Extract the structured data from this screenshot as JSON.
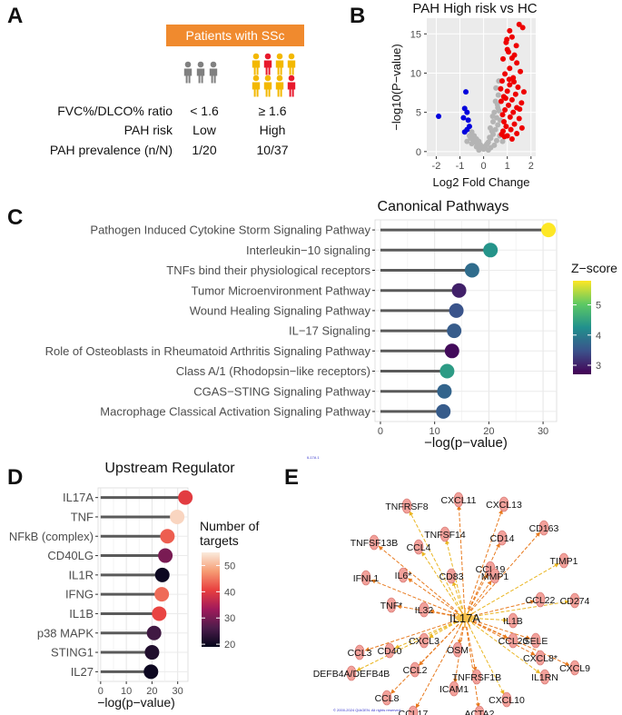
{
  "panelA": {
    "letter": "A",
    "banner": "Patients with SSc",
    "rows": [
      {
        "label": "FVC%/DLCO% ratio",
        "low": "< 1.6",
        "high": "≥ 1.6"
      },
      {
        "label": "PAH risk",
        "low": "Low",
        "high": "High"
      },
      {
        "label": "PAH prevalence  (n/N)",
        "low": "1/20",
        "high": "10/37"
      }
    ],
    "colors": {
      "gray": "#808080",
      "yellow": "#f3b800",
      "red": "#e8192c"
    }
  },
  "panelB": {
    "letter": "B"
  },
  "panelC": {
    "letter": "C"
  },
  "panelD": {
    "letter": "D"
  },
  "panelE": {
    "letter": "E",
    "hub": "IL17A",
    "tiny_label": "IL17A 1",
    "copyright": "© 2000-2024 QIAGEN. All rights reserved.",
    "nodes": [
      "TNFRSF8",
      "CXCL11",
      "CXCL13",
      "TNFSF14",
      "CD163",
      "TNFSF13B",
      "CCL4",
      "CD14",
      "CCL19",
      "TIMP1",
      "IFNL1",
      "IL6*",
      "CD83",
      "MMP1",
      "CCL22",
      "CD274",
      "TNF*",
      "IL32",
      "IL1B",
      "SELE",
      "CCL3",
      "CXCL3",
      "CCL20",
      "CXCL9",
      "CD40",
      "OSM",
      "CXCL8*",
      "DEFB4A/DEFB4B",
      "CCL2",
      "TNFRSF1B",
      "IL1RN",
      "ICAM1",
      "CCL8",
      "CXCL10",
      "CCL17",
      "ACTA2"
    ]
  },
  "chart_data": [
    {
      "id": "volcano",
      "type": "scatter",
      "title": "PAH High risk vs HC",
      "xlabel": "Log2 Fold Change",
      "ylabel": "−log10(P−value)",
      "xlim": [
        -2.4,
        2.2
      ],
      "ylim": [
        -0.6,
        17
      ],
      "xticks": [
        -2,
        -1,
        0,
        1,
        2
      ],
      "yticks": [
        0,
        5,
        10,
        15
      ],
      "series": [
        {
          "name": "down",
          "color": "#0000dd",
          "points": [
            [
              -1.9,
              4.5
            ],
            [
              -0.75,
              7.6
            ],
            [
              -0.8,
              5.5
            ],
            [
              -0.7,
              5.0
            ],
            [
              -0.85,
              4.3
            ],
            [
              -0.65,
              4.0
            ],
            [
              -0.7,
              2.8
            ],
            [
              -0.6,
              3.2
            ],
            [
              -0.8,
              2.5
            ]
          ]
        },
        {
          "name": "up",
          "color": "#ee0000",
          "points": [
            [
              1.5,
              16.2
            ],
            [
              1.65,
              15.8
            ],
            [
              1.1,
              15.4
            ],
            [
              1.2,
              14.6
            ],
            [
              0.95,
              13.9
            ],
            [
              1.0,
              13.0
            ],
            [
              1.3,
              12.3
            ],
            [
              1.4,
              11.3
            ],
            [
              0.82,
              11.8
            ],
            [
              1.1,
              10.6
            ],
            [
              1.55,
              10.2
            ],
            [
              0.9,
              9.9
            ],
            [
              1.25,
              9.4
            ],
            [
              0.78,
              9.0
            ],
            [
              1.1,
              8.5
            ],
            [
              1.45,
              8.2
            ],
            [
              0.72,
              8.0
            ],
            [
              1.0,
              7.7
            ],
            [
              1.35,
              7.3
            ],
            [
              0.85,
              7.0
            ],
            [
              1.2,
              6.6
            ],
            [
              1.6,
              6.2
            ],
            [
              0.74,
              6.4
            ],
            [
              1.05,
              5.9
            ],
            [
              1.4,
              5.6
            ],
            [
              0.9,
              5.3
            ],
            [
              1.25,
              5.0
            ],
            [
              0.8,
              4.7
            ],
            [
              1.12,
              4.4
            ],
            [
              1.5,
              4.2
            ],
            [
              0.86,
              3.8
            ],
            [
              1.3,
              3.5
            ],
            [
              0.95,
              3.2
            ],
            [
              1.62,
              3.0
            ],
            [
              1.15,
              2.8
            ],
            [
              0.82,
              2.6
            ],
            [
              1.4,
              2.3
            ],
            [
              1.0,
              2.0
            ],
            [
              0.88,
              1.9
            ],
            [
              1.2,
              1.6
            ],
            [
              0.76,
              2.2
            ],
            [
              0.93,
              6.8
            ],
            [
              1.08,
              9.2
            ],
            [
              1.2,
              11.9
            ],
            [
              1.05,
              12.7
            ],
            [
              0.98,
              14.3
            ],
            [
              1.38,
              13.5
            ],
            [
              1.7,
              7.6
            ],
            [
              1.52,
              5.4
            ],
            [
              1.28,
              8.9
            ]
          ]
        },
        {
          "name": "ns",
          "color": "#b4b4b4",
          "points": [
            [
              0.0,
              0.3
            ],
            [
              0.1,
              0.8
            ],
            [
              -0.1,
              0.7
            ],
            [
              0.2,
              1.2
            ],
            [
              -0.2,
              1.3
            ],
            [
              0.3,
              1.7
            ],
            [
              -0.3,
              1.6
            ],
            [
              0.4,
              2.2
            ],
            [
              -0.4,
              2.0
            ],
            [
              0.5,
              2.8
            ],
            [
              -0.5,
              2.5
            ],
            [
              0.6,
              3.4
            ],
            [
              0.55,
              4.3
            ],
            [
              0.45,
              5.0
            ],
            [
              0.6,
              5.6
            ],
            [
              0.5,
              6.4
            ],
            [
              0.62,
              7.2
            ],
            [
              0.4,
              3.8
            ],
            [
              0.35,
              2.6
            ],
            [
              0.25,
              1.8
            ],
            [
              0.15,
              1.0
            ],
            [
              -0.05,
              0.4
            ],
            [
              0.05,
              0.6
            ],
            [
              -0.15,
              0.9
            ],
            [
              -0.25,
              1.0
            ],
            [
              -0.35,
              1.2
            ],
            [
              -0.45,
              1.5
            ],
            [
              -0.55,
              1.7
            ],
            [
              -0.6,
              2.0
            ],
            [
              0.3,
              0.5
            ],
            [
              0.45,
              0.8
            ],
            [
              -0.3,
              0.6
            ],
            [
              0.55,
              1.4
            ],
            [
              0.68,
              2.0
            ],
            [
              0.7,
              4.0
            ],
            [
              0.52,
              8.1
            ],
            [
              0.64,
              9.0
            ],
            [
              0.28,
              3.0
            ],
            [
              0.38,
              4.5
            ],
            [
              -0.5,
              1.0
            ],
            [
              -0.7,
              1.3
            ],
            [
              0.8,
              1.3
            ],
            [
              0.2,
              0.2
            ],
            [
              -0.2,
              0.2
            ],
            [
              0.65,
              5.2
            ],
            [
              0.58,
              6.0
            ]
          ]
        }
      ]
    },
    {
      "id": "canonical",
      "type": "lollipop",
      "title": "Canonical Pathways",
      "xlabel": "−log(p−value)",
      "xlim": [
        -1,
        32.5
      ],
      "xticks": [
        0,
        10,
        20,
        30
      ],
      "legend_title": "Z−score",
      "legend_ticks": [
        3,
        4,
        5
      ],
      "zlim": [
        2.7,
        5.8
      ],
      "categories": [
        "Pathogen Induced Cytokine Storm Signaling Pathway",
        "Interleukin−10 signaling",
        "TNFs bind their physiological receptors",
        "Tumor Microenvironment Pathway",
        "Wound Healing Signaling Pathway",
        "IL−17 Signaling",
        "Role of Osteoblasts in Rheumatoid Arthritis Signaling Pathway",
        "Class A/1 (Rhodopsin−like receptors)",
        "CGAS−STING Signaling Pathway",
        "Macrophage Classical Activation Signaling Pathway"
      ],
      "values": [
        31.0,
        20.3,
        16.9,
        14.5,
        14.0,
        13.6,
        13.2,
        12.3,
        11.8,
        11.6
      ],
      "zscores": [
        5.8,
        4.3,
        3.8,
        3.0,
        3.5,
        3.6,
        2.8,
        4.4,
        3.7,
        3.6
      ]
    },
    {
      "id": "upstream",
      "type": "lollipop",
      "title": "Upstream Regulator",
      "xlabel": "−log(p−value)",
      "xlim": [
        -1,
        34
      ],
      "xticks": [
        0,
        10,
        20,
        30
      ],
      "legend_title": "Number of targets",
      "legend_ticks": [
        20,
        30,
        40,
        50
      ],
      "zlim": [
        19,
        55
      ],
      "categories": [
        "IL17A",
        "TNF",
        "NFkB (complex)",
        "CD40LG",
        "IL1R",
        "IFNG",
        "IL1B",
        "p38 MAPK",
        "STING1",
        "IL27"
      ],
      "values": [
        33.0,
        29.8,
        26.0,
        25.2,
        24.0,
        23.8,
        22.8,
        20.8,
        20.0,
        19.6
      ],
      "targets": [
        40,
        53,
        43,
        30,
        20,
        44,
        41,
        25,
        22,
        20
      ]
    }
  ]
}
